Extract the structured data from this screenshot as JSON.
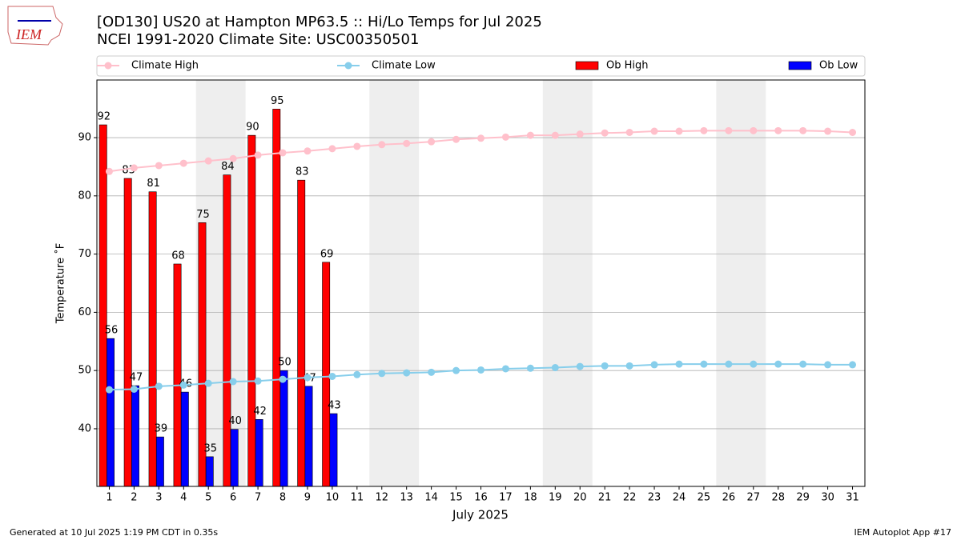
{
  "chart_data": {
    "type": "bar",
    "title": [
      "[OD130] US20 at Hampton MP63.5  :: Hi/Lo Temps for Jul 2025",
      "NCEI 1991-2020 Climate Site: USC00350501"
    ],
    "x_label": "July 2025",
    "y_label": "Temperature ˚F",
    "x": [
      1,
      2,
      3,
      4,
      5,
      6,
      7,
      8,
      9,
      10,
      11,
      12,
      13,
      14,
      15,
      16,
      17,
      18,
      19,
      20,
      21,
      22,
      23,
      24,
      25,
      26,
      27,
      28,
      29,
      30,
      31
    ],
    "xlim": [
      0.5,
      31.5
    ],
    "xticks": [
      1,
      2,
      3,
      4,
      5,
      6,
      7,
      8,
      9,
      10,
      11,
      12,
      13,
      14,
      15,
      16,
      17,
      18,
      19,
      20,
      21,
      22,
      23,
      24,
      25,
      26,
      27,
      28,
      29,
      30,
      31
    ],
    "ylim": [
      30.1,
      99.9
    ],
    "yticks": [
      40,
      50,
      60,
      70,
      80,
      90
    ],
    "grid": true,
    "shaded_ranges": [
      [
        4.5,
        6.5
      ],
      [
        11.5,
        13.5
      ],
      [
        18.5,
        20.5
      ],
      [
        25.5,
        27.5
      ]
    ],
    "series": [
      {
        "name": "Climate High",
        "type": "line",
        "color": "#ffc0cb",
        "values": [
          84.2,
          84.8,
          85.2,
          85.6,
          86.0,
          86.4,
          87.0,
          87.4,
          87.7,
          88.1,
          88.5,
          88.8,
          89.0,
          89.3,
          89.7,
          89.9,
          90.1,
          90.4,
          90.4,
          90.6,
          90.8,
          90.9,
          91.1,
          91.1,
          91.2,
          91.2,
          91.2,
          91.2,
          91.2,
          91.1,
          90.9
        ]
      },
      {
        "name": "Climate Low",
        "type": "line",
        "color": "#87ceeb",
        "values": [
          46.7,
          46.8,
          47.3,
          47.5,
          47.8,
          48.1,
          48.2,
          48.5,
          48.8,
          49.0,
          49.3,
          49.5,
          49.6,
          49.7,
          50.0,
          50.1,
          50.3,
          50.4,
          50.5,
          50.7,
          50.8,
          50.8,
          51.0,
          51.1,
          51.1,
          51.1,
          51.1,
          51.1,
          51.1,
          51.0,
          51.0
        ]
      },
      {
        "name": "Ob High",
        "type": "bar",
        "color": "#ff0000",
        "values": [
          92.2,
          83.0,
          80.7,
          68.3,
          75.4,
          83.6,
          90.4,
          94.9,
          82.7,
          68.6,
          null,
          null,
          null,
          null,
          null,
          null,
          null,
          null,
          null,
          null,
          null,
          null,
          null,
          null,
          null,
          null,
          null,
          null,
          null,
          null,
          null
        ],
        "value_labels": [
          "92",
          "83",
          "81",
          "68",
          "75",
          "84",
          "90",
          "95",
          "83",
          "69",
          null,
          null,
          null,
          null,
          null,
          null,
          null,
          null,
          null,
          null,
          null,
          null,
          null,
          null,
          null,
          null,
          null,
          null,
          null,
          null,
          null
        ]
      },
      {
        "name": "Ob Low",
        "type": "bar",
        "color": "#0000ff",
        "values": [
          55.5,
          47.4,
          38.6,
          46.3,
          35.2,
          39.9,
          41.6,
          50.0,
          47.3,
          42.6,
          null,
          null,
          null,
          null,
          null,
          null,
          null,
          null,
          null,
          null,
          null,
          null,
          null,
          null,
          null,
          null,
          null,
          null,
          null,
          null,
          null
        ],
        "value_labels": [
          "56",
          "47",
          "39",
          "46",
          "35",
          "40",
          "42",
          "50",
          "47",
          "43",
          null,
          null,
          null,
          null,
          null,
          null,
          null,
          null,
          null,
          null,
          null,
          null,
          null,
          null,
          null,
          null,
          null,
          null,
          null,
          null,
          null
        ]
      }
    ]
  },
  "logo_text": "IEM",
  "footer": {
    "left": "Generated at 10 Jul 2025 1:19 PM CDT in 0.35s",
    "right": "IEM Autoplot App #17"
  }
}
